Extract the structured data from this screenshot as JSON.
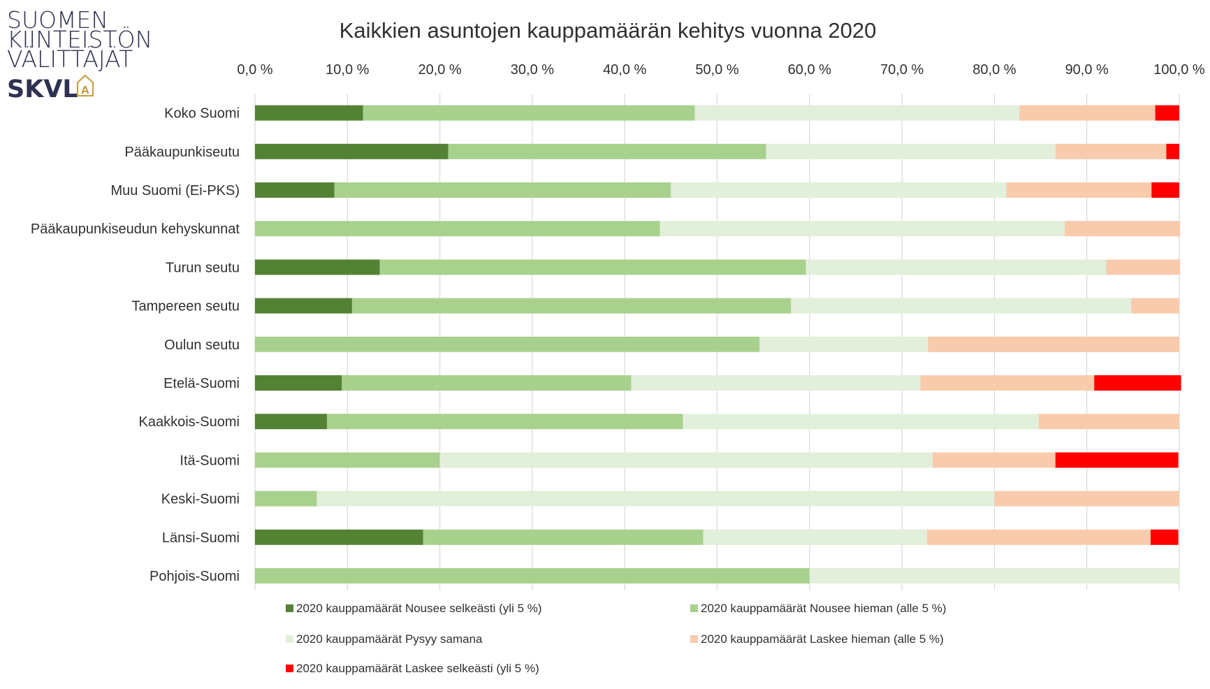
{
  "logo": {
    "line1": "SUOMEN",
    "line2": "KIINTEISTÖN-",
    "line3": "VÄLITTÄJÄT",
    "abbr": "SKVL",
    "color": "#2e3150",
    "accent": "#c9a24a"
  },
  "chart_data": {
    "type": "bar",
    "orientation": "horizontal",
    "stacked": true,
    "title": "Kaikkien asuntojen kauppamäärän kehitys vuonna 2020",
    "xlabel": "",
    "ylabel": "",
    "xlim": [
      0,
      100
    ],
    "xticks": [
      "0,0 %",
      "10,0 %",
      "20,0 %",
      "30,0 %",
      "40,0 %",
      "50,0 %",
      "60,0 %",
      "70,0 %",
      "80,0 %",
      "90,0 %",
      "100,0 %"
    ],
    "x_axis_position": "top",
    "grid": true,
    "legend_position": "bottom",
    "categories": [
      "Koko Suomi",
      "Pääkaupunkiseutu",
      "Muu Suomi (Ei-PKS)",
      "Pääkaupunkiseudun kehyskunnat",
      "Turun seutu",
      "Tampereen seutu",
      "Oulun seutu",
      "Etelä-Suomi",
      "Kaakkois-Suomi",
      "Itä-Suomi",
      "Keski-Suomi",
      "Länsi-Suomi",
      "Pohjois-Suomi"
    ],
    "series": [
      {
        "name": "2020 kauppamäärät Nousee selkeästi (yli 5 %)",
        "color": "#548235",
        "values": [
          11.7,
          20.9,
          8.6,
          0,
          13.5,
          10.5,
          0,
          9.4,
          7.8,
          0,
          0,
          18.2,
          0
        ]
      },
      {
        "name": "2020 kauppamäärät Nousee hieman (alle 5 %)",
        "color": "#a9d18e",
        "values": [
          35.9,
          34.4,
          36.4,
          43.8,
          46.1,
          47.5,
          54.6,
          31.3,
          38.5,
          20.0,
          6.7,
          30.3,
          60.0
        ]
      },
      {
        "name": "2020 kauppamäärät Pysyy samana",
        "color": "#e2efda",
        "values": [
          35.1,
          31.3,
          36.3,
          43.8,
          32.5,
          36.8,
          18.2,
          31.3,
          38.5,
          53.3,
          73.3,
          24.2,
          40.0
        ]
      },
      {
        "name": "2020 kauppamäärät Laskee hieman (alle 5 %)",
        "color": "#f8cbad",
        "values": [
          14.7,
          12.0,
          15.7,
          12.5,
          8.0,
          5.2,
          27.2,
          18.8,
          15.2,
          13.3,
          20.0,
          24.2,
          0
        ]
      },
      {
        "name": "2020 kauppamäärät Laskee selkeästi (yli 5 %)",
        "color": "#ff0000",
        "values": [
          2.6,
          1.4,
          3.0,
          0,
          0,
          0,
          0,
          9.4,
          0,
          13.3,
          0,
          3.0,
          0
        ]
      }
    ]
  }
}
